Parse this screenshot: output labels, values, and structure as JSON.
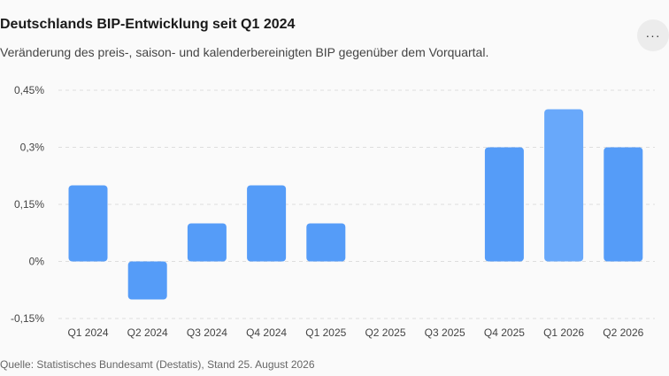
{
  "header": {
    "title": "Deutschlands BIP-Entwicklung seit Q1 2024",
    "subtitle": "Veränderung des preis-, saison- und kalenderbereinigten BIP gegenüber dem Vorquartal.",
    "more_icon": "more-horizontal-icon",
    "more_label": "···"
  },
  "chart_data": {
    "type": "bar",
    "title": "Deutschlands BIP-Entwicklung seit Q1 2024",
    "subtitle": "Veränderung des preis-, saison- und kalenderbereinigten BIP gegenüber dem Vorquartal.",
    "xlabel": "",
    "ylabel": "",
    "categories": [
      "Q1 2024",
      "Q2 2024",
      "Q3 2024",
      "Q4 2024",
      "Q1 2025",
      "Q2 2025",
      "Q3 2025",
      "Q4 2025",
      "Q1 2026",
      "Q2 2026"
    ],
    "values": [
      0.2,
      -0.1,
      0.1,
      0.2,
      0.1,
      null,
      null,
      0.3,
      0.4,
      0.3
    ],
    "ylim": [
      -0.15,
      0.45
    ],
    "yticks": [
      -0.15,
      0,
      0.15,
      0.3,
      0.45
    ],
    "ytick_labels": [
      "-0,15%",
      "0%",
      "0,15%",
      "0,3%",
      "0,45%"
    ],
    "grid": true,
    "colors": {
      "bar": "#559cf8",
      "bar_highlight": "#68a8fa",
      "grid": "#dedede"
    }
  },
  "footer": {
    "source": "Quelle: Statistisches Bundesamt (Destatis), Stand 25. August 2026"
  }
}
